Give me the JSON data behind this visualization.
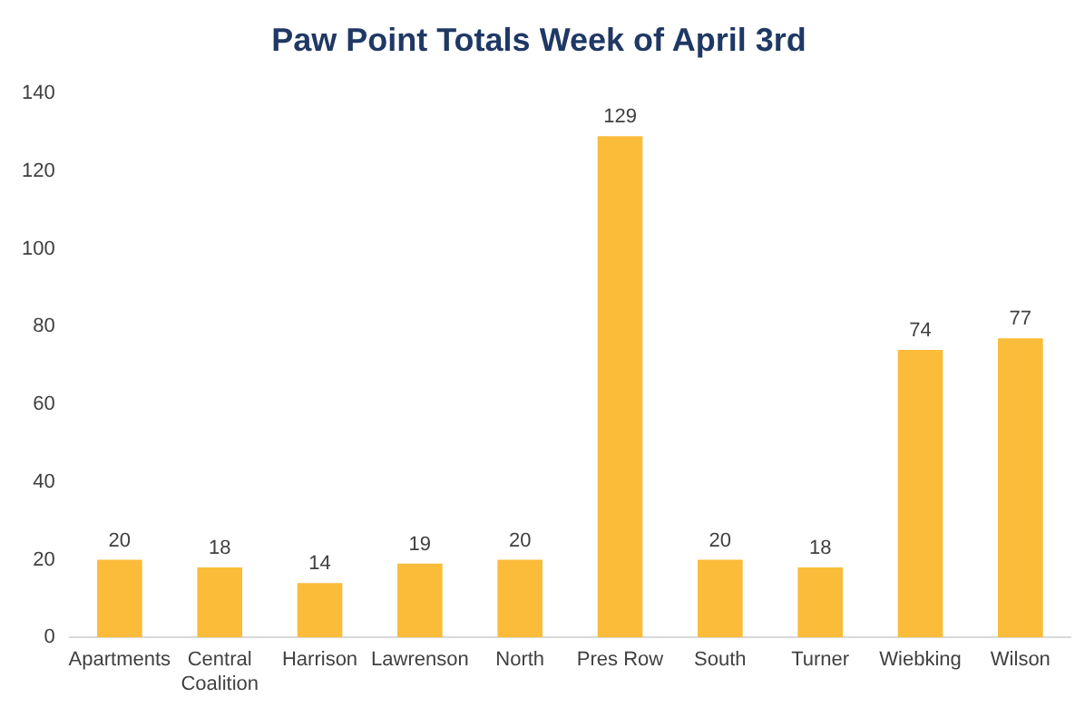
{
  "chart_data": {
    "type": "bar",
    "title": "Paw Point Totals Week of April 3rd",
    "categories": [
      "Apartments",
      "Central Coalition",
      "Harrison",
      "Lawrenson",
      "North",
      "Pres Row",
      "South",
      "Turner",
      "Wiebking",
      "Wilson"
    ],
    "values": [
      20,
      18,
      14,
      19,
      20,
      129,
      20,
      18,
      74,
      77
    ],
    "color": "#fbbc3a",
    "ylim": [
      0,
      140
    ],
    "yticks": [
      0,
      20,
      40,
      60,
      80,
      100,
      120,
      140
    ],
    "grid": false,
    "legend": false,
    "data_labels": true
  }
}
